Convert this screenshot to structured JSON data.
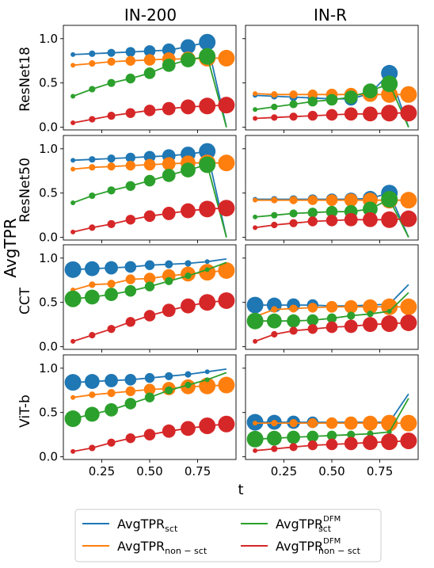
{
  "figure": {
    "ylabel": "AvgTPR",
    "xlabel": "t",
    "col_titles": [
      "IN-200",
      "IN-R"
    ],
    "row_labels": [
      "ResNet18",
      "ResNet50",
      "CCT",
      "ViT-b"
    ],
    "xticks": [
      0.25,
      0.5,
      0.75
    ],
    "xtick_labels": [
      "0.25",
      "0.50",
      "0.75"
    ],
    "yticks": [
      0.0,
      0.5,
      1.0
    ],
    "ytick_labels": [
      "0.0",
      "0.5",
      "1.0"
    ]
  },
  "legend": {
    "placement": "bottom-center",
    "entries": [
      {
        "key": "sct",
        "base": "AvgTPR",
        "sub": "sct",
        "sup": ""
      },
      {
        "key": "non_sct",
        "base": "AvgTPR",
        "sub": "non − sct",
        "sup": ""
      },
      {
        "key": "sct_dfm",
        "base": "AvgTPR",
        "sub": "sct",
        "sup": "DFM"
      },
      {
        "key": "non_sct_dfm",
        "base": "AvgTPR",
        "sub": "non − sct",
        "sup": "DFM"
      }
    ]
  },
  "chart_data": {
    "type": "line",
    "note_marker_size": "marker size grows with the value of t for some series",
    "x": [
      0.1,
      0.2,
      0.3,
      0.4,
      0.5,
      0.6,
      0.7,
      0.8,
      0.9
    ],
    "xlim": [
      0.05,
      0.95
    ],
    "ylim": [
      -0.03,
      1.15
    ],
    "grid": false,
    "series_colors": {
      "sct": "#1f77b4",
      "non_sct": "#ff7f0e",
      "sct_dfm": "#2ca02c",
      "non_sct_dfm": "#d62728"
    },
    "panels": [
      {
        "row": "ResNet18",
        "col": "IN-200",
        "series": {
          "sct": [
            0.82,
            0.83,
            0.84,
            0.85,
            0.86,
            0.87,
            0.91,
            0.96,
            0.0
          ],
          "non_sct": [
            0.7,
            0.72,
            0.74,
            0.75,
            0.76,
            0.77,
            0.77,
            0.78,
            0.78
          ],
          "sct_dfm": [
            0.35,
            0.43,
            0.5,
            0.55,
            0.61,
            0.7,
            0.76,
            0.8,
            0.0
          ],
          "non_sct_dfm": [
            0.05,
            0.09,
            0.13,
            0.16,
            0.19,
            0.21,
            0.23,
            0.24,
            0.25
          ]
        }
      },
      {
        "row": "ResNet18",
        "col": "IN-R",
        "series": {
          "sct": [
            0.36,
            0.35,
            0.34,
            0.33,
            0.32,
            0.32,
            0.38,
            0.61,
            0.0
          ],
          "non_sct": [
            0.38,
            0.37,
            0.37,
            0.37,
            0.37,
            0.37,
            0.37,
            0.37,
            0.37
          ],
          "sct_dfm": [
            0.2,
            0.23,
            0.26,
            0.29,
            0.31,
            0.34,
            0.41,
            0.49,
            0.0
          ],
          "non_sct_dfm": [
            0.1,
            0.11,
            0.12,
            0.13,
            0.14,
            0.15,
            0.15,
            0.16,
            0.16
          ]
        }
      },
      {
        "row": "ResNet50",
        "col": "IN-200",
        "series": {
          "sct": [
            0.87,
            0.88,
            0.89,
            0.9,
            0.91,
            0.92,
            0.94,
            0.97,
            0.0
          ],
          "non_sct": [
            0.77,
            0.79,
            0.8,
            0.81,
            0.82,
            0.83,
            0.84,
            0.84,
            0.84
          ],
          "sct_dfm": [
            0.39,
            0.47,
            0.53,
            0.58,
            0.64,
            0.7,
            0.76,
            0.82,
            0.0
          ],
          "non_sct_dfm": [
            0.06,
            0.11,
            0.15,
            0.2,
            0.24,
            0.27,
            0.3,
            0.32,
            0.33
          ]
        }
      },
      {
        "row": "ResNet50",
        "col": "IN-R",
        "series": {
          "sct": [
            0.43,
            0.43,
            0.43,
            0.43,
            0.43,
            0.43,
            0.44,
            0.5,
            0.0
          ],
          "non_sct": [
            0.42,
            0.42,
            0.42,
            0.42,
            0.42,
            0.42,
            0.42,
            0.42,
            0.42
          ],
          "sct_dfm": [
            0.23,
            0.25,
            0.27,
            0.28,
            0.29,
            0.29,
            0.32,
            0.43,
            0.0
          ],
          "non_sct_dfm": [
            0.11,
            0.14,
            0.16,
            0.18,
            0.19,
            0.2,
            0.2,
            0.2,
            0.21
          ]
        }
      },
      {
        "row": "CCT",
        "col": "IN-200",
        "series": {
          "sct": [
            0.87,
            0.88,
            0.89,
            0.9,
            0.92,
            0.93,
            0.94,
            0.96,
            0.99
          ],
          "non_sct": [
            0.64,
            0.7,
            0.71,
            0.76,
            0.77,
            0.8,
            0.82,
            0.84,
            0.86
          ],
          "sct_dfm": [
            0.54,
            0.56,
            0.59,
            0.63,
            0.68,
            0.74,
            0.8,
            0.87,
            0.95
          ],
          "non_sct_dfm": [
            0.06,
            0.13,
            0.2,
            0.28,
            0.35,
            0.41,
            0.46,
            0.5,
            0.52
          ]
        }
      },
      {
        "row": "CCT",
        "col": "IN-R",
        "series": {
          "sct": [
            0.47,
            0.47,
            0.47,
            0.47,
            0.46,
            0.46,
            0.47,
            0.48,
            0.7
          ],
          "non_sct": [
            0.34,
            0.42,
            0.43,
            0.44,
            0.45,
            0.45,
            0.45,
            0.45,
            0.45
          ],
          "sct_dfm": [
            0.29,
            0.29,
            0.29,
            0.3,
            0.32,
            0.35,
            0.37,
            0.4,
            0.61
          ],
          "non_sct_dfm": [
            0.06,
            0.14,
            0.18,
            0.2,
            0.22,
            0.23,
            0.25,
            0.26,
            0.27
          ]
        }
      },
      {
        "row": "ViT-b",
        "col": "IN-200",
        "series": {
          "sct": [
            0.84,
            0.85,
            0.86,
            0.87,
            0.89,
            0.91,
            0.93,
            0.96,
            0.99
          ],
          "non_sct": [
            0.67,
            0.7,
            0.72,
            0.74,
            0.76,
            0.77,
            0.79,
            0.8,
            0.81
          ],
          "sct_dfm": [
            0.43,
            0.48,
            0.53,
            0.6,
            0.67,
            0.75,
            0.81,
            0.87,
            0.95
          ],
          "non_sct_dfm": [
            0.06,
            0.1,
            0.16,
            0.21,
            0.25,
            0.29,
            0.32,
            0.35,
            0.37
          ]
        }
      },
      {
        "row": "ViT-b",
        "col": "IN-R",
        "series": {
          "sct": [
            0.39,
            0.39,
            0.39,
            0.39,
            0.39,
            0.39,
            0.39,
            0.39,
            0.71
          ],
          "non_sct": [
            0.38,
            0.38,
            0.38,
            0.38,
            0.38,
            0.38,
            0.38,
            0.38,
            0.38
          ],
          "sct_dfm": [
            0.2,
            0.21,
            0.22,
            0.23,
            0.24,
            0.25,
            0.26,
            0.28,
            0.66
          ],
          "non_sct_dfm": [
            0.07,
            0.09,
            0.11,
            0.13,
            0.14,
            0.15,
            0.16,
            0.17,
            0.18
          ]
        }
      }
    ],
    "marker_size_rules": {
      "ResNet18|IN-200": {
        "sct": "grow",
        "non_sct": "grow",
        "sct_dfm": "grow",
        "non_sct_dfm": "grow"
      },
      "ResNet18|IN-R": {
        "sct": "grow",
        "non_sct": "grow",
        "sct_dfm": "grow",
        "non_sct_dfm": "grow"
      },
      "ResNet50|IN-200": {
        "sct": "grow",
        "non_sct": "grow",
        "sct_dfm": "grow",
        "non_sct_dfm": "grow"
      },
      "ResNet50|IN-R": {
        "sct": "grow",
        "non_sct": "grow",
        "sct_dfm": "grow",
        "non_sct_dfm": "grow"
      },
      "CCT|IN-200": {
        "sct": "shrink",
        "non_sct": "grow",
        "sct_dfm": "shrink",
        "non_sct_dfm": "grow"
      },
      "CCT|IN-R": {
        "sct": "shrink",
        "non_sct": "grow",
        "sct_dfm": "shrink",
        "non_sct_dfm": "grow"
      },
      "ViT-b|IN-200": {
        "sct": "shrink",
        "non_sct": "grow",
        "sct_dfm": "shrink",
        "non_sct_dfm": "grow"
      },
      "ViT-b|IN-R": {
        "sct": "shrink",
        "non_sct": "grow",
        "sct_dfm": "shrink",
        "non_sct_dfm": "grow"
      }
    }
  }
}
